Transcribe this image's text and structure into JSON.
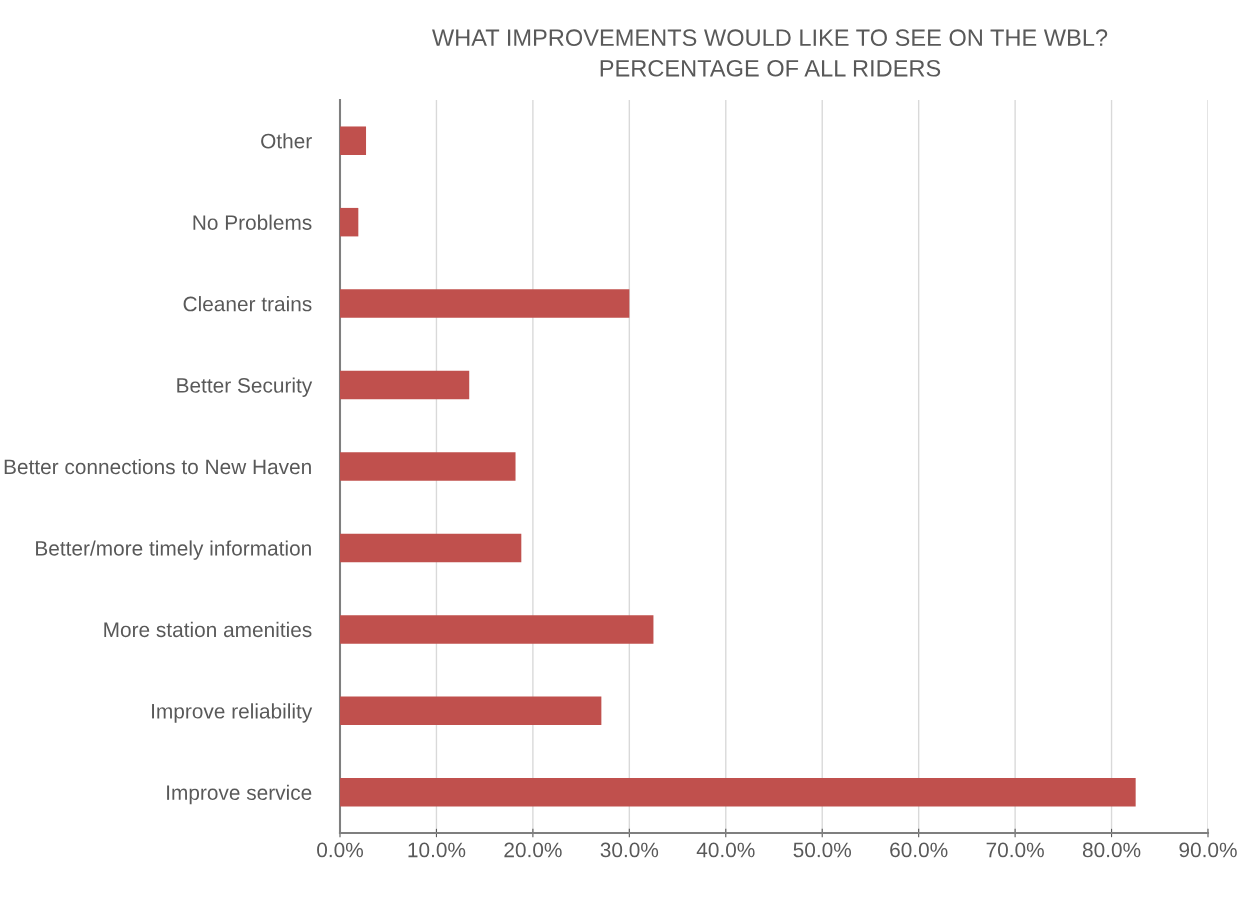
{
  "chart_data": {
    "type": "bar",
    "orientation": "horizontal",
    "title": "WHAT IMPROVEMENTS WOULD LIKE TO SEE ON THE WBL?\nPERCENTAGE OF ALL RIDERS",
    "categories": [
      "Other",
      "No Problems",
      "Cleaner trains",
      "Better Security",
      "Better connections to New Haven",
      "Better/more timely information",
      "More station amenities",
      "Improve reliability",
      "Improve service"
    ],
    "values": [
      2.7,
      1.9,
      30.0,
      13.4,
      18.2,
      18.8,
      32.5,
      27.1,
      82.5
    ],
    "color": "#c0504d",
    "xlim": [
      0,
      90
    ],
    "xticks": [
      {
        "value": 0,
        "label": "0.0%"
      },
      {
        "value": 10,
        "label": "10.0%"
      },
      {
        "value": 20,
        "label": "20.0%"
      },
      {
        "value": 30,
        "label": "30.0%"
      },
      {
        "value": 40,
        "label": "40.0%"
      },
      {
        "value": 50,
        "label": "50.0%"
      },
      {
        "value": 60,
        "label": "60.0%"
      },
      {
        "value": 70,
        "label": "70.0%"
      },
      {
        "value": 80,
        "label": "80.0%"
      },
      {
        "value": 90,
        "label": "90.0%"
      }
    ],
    "grid": "x",
    "legend": false
  }
}
